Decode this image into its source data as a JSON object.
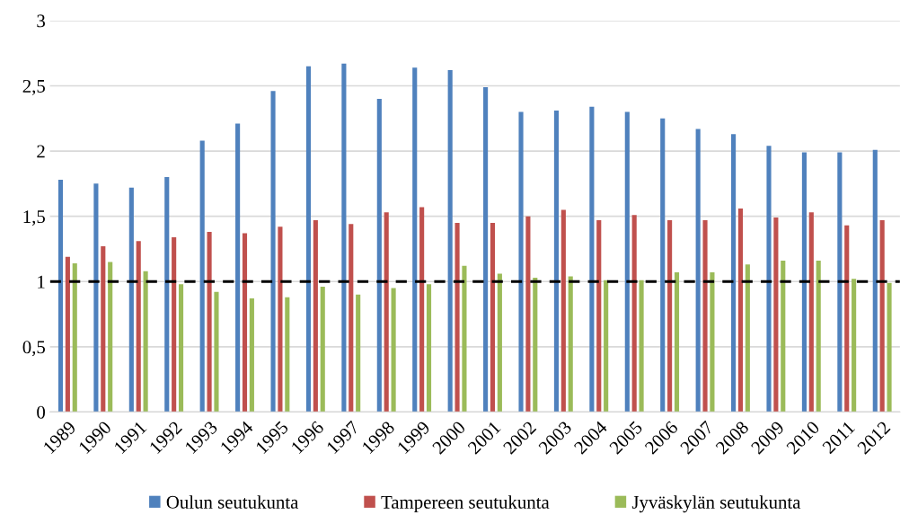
{
  "chart_data": {
    "type": "bar",
    "categories": [
      "1989",
      "1990",
      "1991",
      "1992",
      "1993",
      "1994",
      "1995",
      "1996",
      "1997",
      "1998",
      "1999",
      "2000",
      "2001",
      "2002",
      "2003",
      "2004",
      "2005",
      "2006",
      "2007",
      "2008",
      "2009",
      "2010",
      "2011",
      "2012"
    ],
    "series": [
      {
        "name": "Oulun seutukunta",
        "color": "#4f81bd",
        "values": [
          1.78,
          1.75,
          1.72,
          1.8,
          2.08,
          2.21,
          2.46,
          2.65,
          2.67,
          2.4,
          2.64,
          2.62,
          2.49,
          2.3,
          2.31,
          2.34,
          2.3,
          2.25,
          2.17,
          2.13,
          2.04,
          1.99,
          1.99,
          2.01
        ]
      },
      {
        "name": "Tampereen seutukunta",
        "color": "#c0504d",
        "values": [
          1.19,
          1.27,
          1.31,
          1.34,
          1.38,
          1.37,
          1.42,
          1.47,
          1.44,
          1.53,
          1.57,
          1.45,
          1.45,
          1.5,
          1.55,
          1.47,
          1.51,
          1.47,
          1.47,
          1.56,
          1.49,
          1.53,
          1.43,
          1.47
        ]
      },
      {
        "name": "Jyväskylän seutukunta",
        "color": "#9bbb59",
        "values": [
          1.14,
          1.15,
          1.08,
          0.98,
          0.92,
          0.87,
          0.88,
          0.96,
          0.9,
          0.95,
          0.98,
          1.12,
          1.06,
          1.03,
          1.04,
          1.01,
          1.01,
          1.07,
          1.07,
          1.13,
          1.16,
          1.16,
          1.02,
          0.99
        ]
      }
    ],
    "ylim": [
      0,
      3
    ],
    "yticks": [
      {
        "value": 0,
        "label": "0"
      },
      {
        "value": 0.5,
        "label": "0,5"
      },
      {
        "value": 1,
        "label": "1"
      },
      {
        "value": 1.5,
        "label": "1,5"
      },
      {
        "value": 2,
        "label": "2"
      },
      {
        "value": 2.5,
        "label": "2,5"
      },
      {
        "value": 3,
        "label": "3"
      }
    ],
    "grid": "y",
    "legend": "bottom",
    "ref_lines": [
      {
        "axis": "y",
        "value": 1,
        "color": "#000000",
        "line_style": "dashed"
      }
    ]
  }
}
